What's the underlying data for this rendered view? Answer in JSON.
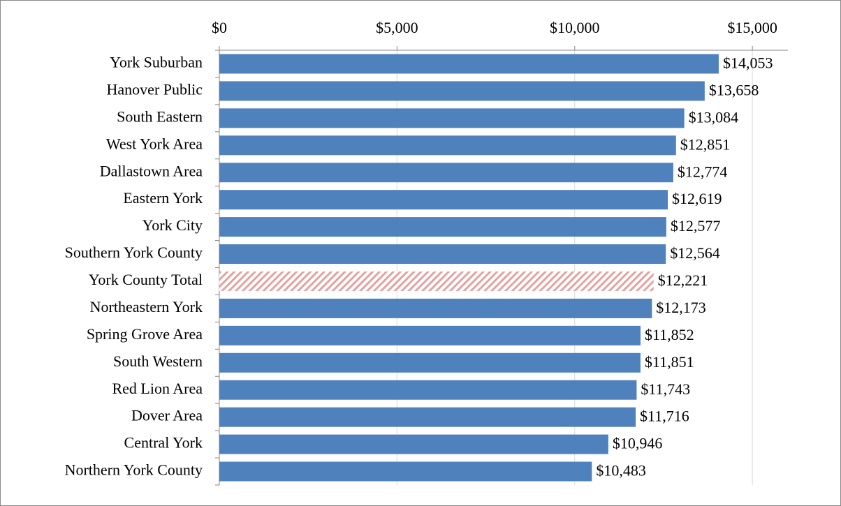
{
  "chart_data": {
    "type": "bar",
    "orientation": "horizontal",
    "categories": [
      "York Suburban",
      "Hanover Public",
      "South Eastern",
      "West York Area",
      "Dallastown Area",
      "Eastern York",
      "York City",
      "Southern York County",
      "York County Total",
      "Northeastern York",
      "Spring Grove Area",
      "South Western",
      "Red Lion Area",
      "Dover Area",
      "Central York",
      "Northern York County"
    ],
    "values": [
      14053,
      13658,
      13084,
      12851,
      12774,
      12619,
      12577,
      12564,
      12221,
      12173,
      11852,
      11851,
      11743,
      11716,
      10946,
      10483
    ],
    "value_labels": [
      "$14,053",
      "$13,658",
      "$13,084",
      "$12,851",
      "$12,774",
      "$12,619",
      "$12,577",
      "$12,564",
      "$12,221",
      "$12,173",
      "$11,852",
      "$11,851",
      "$11,743",
      "$11,716",
      "$10,946",
      "$10,483"
    ],
    "color": "#4f81bd",
    "bar_styles": [
      "solid",
      "solid",
      "solid",
      "solid",
      "solid",
      "solid",
      "solid",
      "solid",
      "hatched",
      "solid",
      "solid",
      "solid",
      "solid",
      "solid",
      "solid",
      "solid"
    ],
    "hatch_color": "#e6a2a0",
    "xlim": [
      0,
      16000
    ],
    "xticks": [
      {
        "value": 0,
        "label": "$0"
      },
      {
        "value": 5000,
        "label": "$5,000"
      },
      {
        "value": 10000,
        "label": "$10,000"
      },
      {
        "value": 15000,
        "label": "$15,000"
      }
    ],
    "grid": true,
    "axis_position": "top"
  }
}
